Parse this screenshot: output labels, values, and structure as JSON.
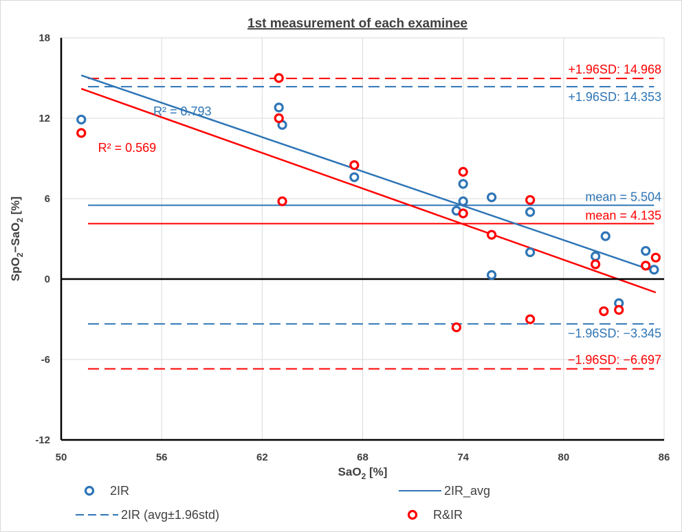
{
  "chart_data": {
    "type": "scatter",
    "title": "1st measurement of each examinee",
    "xlabel": {
      "main": "SaO",
      "sub": "2",
      "tail": " [%]"
    },
    "ylabel": {
      "parts": [
        "SpO",
        "2",
        "−SaO",
        "2",
        " [%]"
      ]
    },
    "xlim": [
      50,
      86
    ],
    "ylim": [
      -12,
      18
    ],
    "xticks": [
      50,
      56,
      62,
      68,
      74,
      80,
      86
    ],
    "yticks": [
      -12,
      -6,
      0,
      6,
      12,
      18
    ],
    "grid": true,
    "colors": {
      "blue": "#2E75B6",
      "red": "#FF0000",
      "zero_line": "#000000",
      "grid": "#D9D9D9",
      "text": "#404040"
    },
    "series": [
      {
        "name": "2IR",
        "color": "#2E75B6",
        "points": [
          [
            51.2,
            11.9
          ],
          [
            63.0,
            12.8
          ],
          [
            63.2,
            11.5
          ],
          [
            67.5,
            7.6
          ],
          [
            73.6,
            5.1
          ],
          [
            74.0,
            7.1
          ],
          [
            74.0,
            5.8
          ],
          [
            75.7,
            6.1
          ],
          [
            75.7,
            0.3
          ],
          [
            78.0,
            5.0
          ],
          [
            78.0,
            2.0
          ],
          [
            81.9,
            1.7
          ],
          [
            82.5,
            3.2
          ],
          [
            83.3,
            -1.8
          ],
          [
            84.9,
            2.1
          ],
          [
            85.4,
            0.7
          ]
        ]
      },
      {
        "name": "R&IR",
        "color": "#FF0000",
        "points": [
          [
            51.2,
            10.9
          ],
          [
            63.0,
            15.0
          ],
          [
            63.0,
            12.0
          ],
          [
            63.2,
            5.8
          ],
          [
            67.5,
            8.5
          ],
          [
            73.6,
            -3.6
          ],
          [
            74.0,
            8.0
          ],
          [
            74.0,
            4.9
          ],
          [
            75.7,
            3.3
          ],
          [
            78.0,
            5.9
          ],
          [
            78.0,
            -3.0
          ],
          [
            81.9,
            1.1
          ],
          [
            82.4,
            -2.4
          ],
          [
            83.3,
            -2.3
          ],
          [
            84.9,
            1.0
          ],
          [
            85.5,
            1.6
          ]
        ]
      }
    ],
    "lines": [
      {
        "series": "2IR_avg",
        "kind": "mean",
        "y": 5.504,
        "x": [
          51.6,
          85.4
        ],
        "color": "#2E75B6",
        "dash": false,
        "label": "mean = 5.504"
      },
      {
        "series": "2IR (avg±1.96std)",
        "kind": "upper",
        "y": 14.353,
        "x": [
          51.6,
          85.4
        ],
        "color": "#2E75B6",
        "dash": true,
        "label": "+1.96SD: 14.353"
      },
      {
        "series": "2IR (avg±1.96std)",
        "kind": "lower",
        "y": -3.345,
        "x": [
          51.6,
          85.4
        ],
        "color": "#2E75B6",
        "dash": true,
        "label": "−1.96SD: −3.345"
      },
      {
        "series": "R&IR",
        "kind": "mean",
        "y": 4.135,
        "x": [
          51.6,
          85.4
        ],
        "color": "#FF0000",
        "dash": false,
        "label": "mean = 4.135"
      },
      {
        "series": "R&IR",
        "kind": "upper",
        "y": 14.968,
        "x": [
          51.6,
          85.4
        ],
        "color": "#FF0000",
        "dash": true,
        "label": "+1.96SD: 14.968"
      },
      {
        "series": "R&IR",
        "kind": "lower",
        "y": -6.697,
        "x": [
          51.6,
          85.4
        ],
        "color": "#FF0000",
        "dash": true,
        "label": "−1.96SD: −6.697"
      }
    ],
    "trendlines": [
      {
        "series": "2IR",
        "color": "#2E75B6",
        "start": [
          51.2,
          15.2
        ],
        "end": [
          85.4,
          0.6
        ],
        "r2_label": "R² = 0.793"
      },
      {
        "series": "R&IR",
        "color": "#FF0000",
        "start": [
          51.2,
          14.2
        ],
        "end": [
          85.5,
          -1.0
        ],
        "r2_label": "R² = 0.569"
      }
    ],
    "legend": {
      "placement": "bottom",
      "entries": [
        {
          "label": "2IR",
          "kind": "marker",
          "color": "#2E75B6"
        },
        {
          "label": "2IR_avg",
          "kind": "line",
          "color": "#2E75B6"
        },
        {
          "label": "2IR (avg±1.96std)",
          "kind": "dashed-line",
          "color": "#2E75B6"
        },
        {
          "label": "R&IR",
          "kind": "marker",
          "color": "#FF0000"
        }
      ]
    }
  }
}
